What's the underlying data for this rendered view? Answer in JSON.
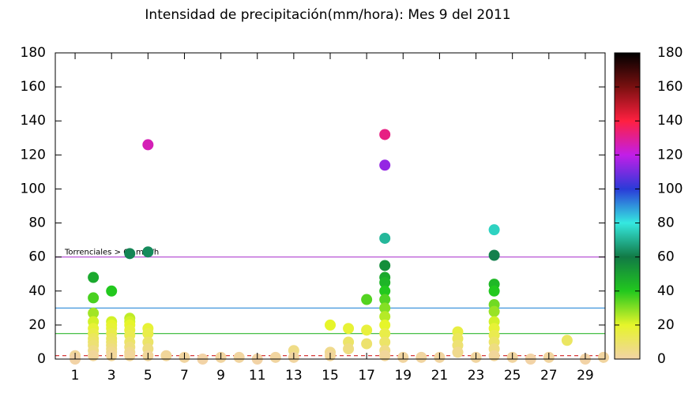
{
  "chart_data": {
    "type": "scatter",
    "title": "Intensidad de precipitación(mm/hora): Mes  9 del 2011",
    "annotation": "Torrenciales > 60 mm/h",
    "xlim": [
      0,
      30
    ],
    "xticks": [
      1,
      3,
      5,
      7,
      9,
      11,
      13,
      15,
      17,
      19,
      21,
      23,
      25,
      27,
      29
    ],
    "ylim": [
      0,
      180
    ],
    "yticks": [
      0,
      20,
      40,
      60,
      80,
      100,
      120,
      140,
      160,
      180
    ],
    "colorbar_lim": [
      0,
      180
    ],
    "colorbar_ticks": [
      0,
      20,
      40,
      60,
      80,
      100,
      120,
      140,
      160,
      180
    ],
    "palette": [
      {
        "value": 0,
        "color": "#f2d3a6"
      },
      {
        "value": 20,
        "color": "#e6f52a"
      },
      {
        "value": 40,
        "color": "#22c81e"
      },
      {
        "value": 60,
        "color": "#117a45"
      },
      {
        "value": 80,
        "color": "#35e8e0"
      },
      {
        "value": 100,
        "color": "#2a3bd8"
      },
      {
        "value": 120,
        "color": "#c21ee8"
      },
      {
        "value": 140,
        "color": "#ff2040"
      },
      {
        "value": 160,
        "color": "#7a1010"
      },
      {
        "value": 180,
        "color": "#000000"
      }
    ],
    "hlines": [
      {
        "value": 60,
        "color": "#b040d0",
        "dashed": false
      },
      {
        "value": 30,
        "color": "#2a8ad8",
        "dashed": false
      },
      {
        "value": 15,
        "color": "#30b830",
        "dashed": false
      },
      {
        "value": 2,
        "color": "#d02020",
        "dashed": true
      }
    ],
    "x": [
      1,
      1,
      2,
      2,
      2,
      2,
      2,
      2,
      2,
      2,
      2,
      2,
      2,
      3,
      3,
      3,
      3,
      3,
      3,
      3,
      3,
      3,
      3,
      3,
      4,
      4,
      4,
      4,
      4,
      4,
      4,
      4,
      4,
      4,
      5,
      5,
      5,
      5,
      5,
      5,
      5,
      6,
      7,
      8,
      9,
      10,
      11,
      12,
      13,
      13,
      15,
      15,
      15,
      16,
      16,
      16,
      17,
      17,
      17,
      18,
      18,
      18,
      18,
      18,
      18,
      18,
      18,
      18,
      18,
      18,
      18,
      18,
      18,
      18,
      19,
      20,
      21,
      22,
      22,
      22,
      22,
      23,
      24,
      24,
      24,
      24,
      24,
      24,
      24,
      24,
      24,
      24,
      24,
      24,
      25,
      26,
      27,
      28,
      29,
      30
    ],
    "y": [
      2,
      0,
      48,
      36,
      27,
      22,
      18,
      15,
      12,
      10,
      8,
      5,
      2,
      40,
      22,
      20,
      18,
      15,
      12,
      10,
      8,
      6,
      4,
      2,
      62,
      24,
      22,
      20,
      17,
      14,
      10,
      7,
      4,
      2,
      126,
      63,
      18,
      15,
      10,
      6,
      2,
      2,
      1,
      0,
      1,
      1,
      0,
      1,
      5,
      1,
      20,
      4,
      2,
      18,
      10,
      6,
      35,
      17,
      9,
      132,
      114,
      71,
      55,
      48,
      45,
      40,
      35,
      30,
      25,
      20,
      15,
      10,
      5,
      2,
      1,
      1,
      1,
      16,
      12,
      8,
      4,
      1,
      76,
      61,
      44,
      40,
      32,
      28,
      22,
      18,
      14,
      10,
      6,
      2,
      1,
      0,
      1,
      11,
      0,
      1
    ]
  }
}
